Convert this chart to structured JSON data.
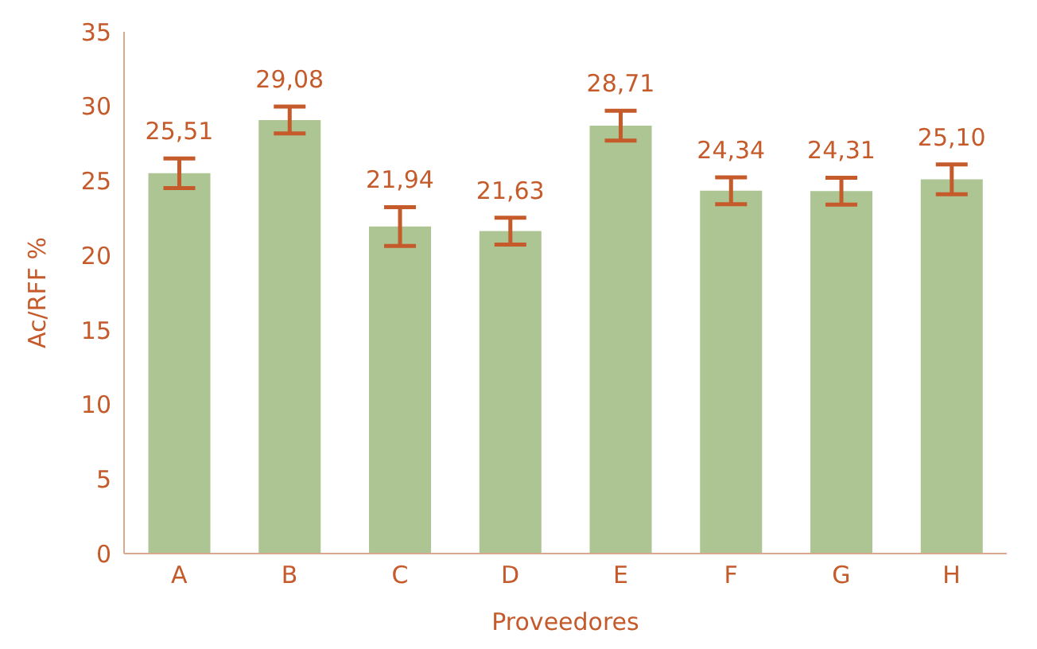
{
  "chart_data": {
    "type": "bar",
    "xlabel": "Proveedores",
    "ylabel": "Ac/RFF %",
    "categories": [
      "A",
      "B",
      "C",
      "D",
      "E",
      "F",
      "G",
      "H"
    ],
    "values": [
      25.51,
      29.08,
      21.94,
      21.63,
      28.71,
      24.34,
      24.31,
      25.1
    ],
    "errors": [
      1.0,
      0.9,
      1.3,
      0.9,
      1.0,
      0.9,
      0.9,
      1.0
    ],
    "value_labels": [
      "25,51",
      "29,08",
      "21,94",
      "21,63",
      "28,71",
      "24,34",
      "24,31",
      "25,10"
    ],
    "color": "#adc493",
    "ylim": [
      0,
      35
    ],
    "yticks": [
      0,
      5,
      10,
      15,
      20,
      25,
      30,
      35
    ],
    "grid": false,
    "legend": false
  }
}
